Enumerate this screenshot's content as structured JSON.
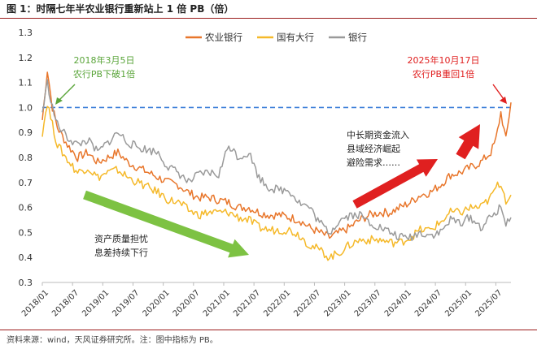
{
  "header": {
    "title": "图 1：时隔七年半农业银行重新站上 1 倍 PB（倍）"
  },
  "footer": {
    "source": "资料来源：wind，天风证券研究所。注：图中指标为 PB。"
  },
  "chart_data": {
    "type": "line",
    "ylim": [
      0.3,
      1.3
    ],
    "y_ticks": [
      "0.3",
      "0.4",
      "0.5",
      "0.6",
      "0.7",
      "0.8",
      "0.9",
      "1.0",
      "1.1",
      "1.2",
      "1.3"
    ],
    "x_ticks": [
      "2018/01",
      "2018/07",
      "2019/01",
      "2019/07",
      "2020/01",
      "2020/07",
      "2021/01",
      "2021/07",
      "2022/01",
      "2022/07",
      "2023/01",
      "2023/07",
      "2024/01",
      "2024/07",
      "2025/01",
      "2025/07"
    ],
    "xlim": [
      "2018/01",
      "2025/10"
    ],
    "legend_position": "top-right",
    "reference_line": {
      "y": 1.0,
      "color": "#3c7fd9",
      "style": "dashed"
    },
    "series": [
      {
        "name": "农业银行",
        "color": "#e8762b",
        "x": [
          "2018/01",
          "2018/02",
          "2018/03",
          "2018/04",
          "2018/06",
          "2018/08",
          "2018/10",
          "2018/12",
          "2019/02",
          "2019/04",
          "2019/06",
          "2019/08",
          "2019/10",
          "2019/12",
          "2020/02",
          "2020/04",
          "2020/06",
          "2020/08",
          "2020/10",
          "2020/12",
          "2021/02",
          "2021/04",
          "2021/06",
          "2021/08",
          "2021/10",
          "2021/12",
          "2022/02",
          "2022/04",
          "2022/06",
          "2022/08",
          "2022/10",
          "2022/12",
          "2023/02",
          "2023/04",
          "2023/06",
          "2023/08",
          "2023/10",
          "2023/12",
          "2024/02",
          "2024/04",
          "2024/06",
          "2024/08",
          "2024/10",
          "2024/12",
          "2025/02",
          "2025/04",
          "2025/06",
          "2025/07",
          "2025/08",
          "2025/09",
          "2025/10"
        ],
        "y": [
          0.95,
          1.15,
          1.0,
          0.92,
          0.85,
          0.8,
          0.82,
          0.78,
          0.8,
          0.82,
          0.78,
          0.76,
          0.74,
          0.72,
          0.7,
          0.69,
          0.66,
          0.64,
          0.64,
          0.63,
          0.62,
          0.6,
          0.6,
          0.58,
          0.57,
          0.57,
          0.56,
          0.55,
          0.52,
          0.5,
          0.48,
          0.5,
          0.52,
          0.55,
          0.57,
          0.58,
          0.58,
          0.6,
          0.62,
          0.65,
          0.66,
          0.69,
          0.73,
          0.74,
          0.76,
          0.78,
          0.82,
          0.87,
          0.98,
          0.87,
          1.02
        ]
      },
      {
        "name": "国有大行",
        "color": "#f5b92a",
        "x": [
          "2018/01",
          "2018/02",
          "2018/03",
          "2018/04",
          "2018/06",
          "2018/08",
          "2018/10",
          "2018/12",
          "2019/02",
          "2019/04",
          "2019/06",
          "2019/08",
          "2019/10",
          "2019/12",
          "2020/02",
          "2020/04",
          "2020/06",
          "2020/08",
          "2020/10",
          "2020/12",
          "2021/02",
          "2021/04",
          "2021/06",
          "2021/08",
          "2021/10",
          "2021/12",
          "2022/02",
          "2022/04",
          "2022/06",
          "2022/08",
          "2022/10",
          "2022/12",
          "2023/02",
          "2023/04",
          "2023/06",
          "2023/08",
          "2023/10",
          "2023/12",
          "2024/02",
          "2024/04",
          "2024/06",
          "2024/08",
          "2024/10",
          "2024/12",
          "2025/02",
          "2025/04",
          "2025/06",
          "2025/07",
          "2025/08",
          "2025/09",
          "2025/10"
        ],
        "y": [
          0.9,
          1.02,
          0.93,
          0.85,
          0.79,
          0.74,
          0.76,
          0.72,
          0.74,
          0.75,
          0.72,
          0.7,
          0.68,
          0.66,
          0.63,
          0.62,
          0.59,
          0.57,
          0.58,
          0.58,
          0.58,
          0.56,
          0.55,
          0.52,
          0.51,
          0.51,
          0.51,
          0.49,
          0.45,
          0.43,
          0.4,
          0.42,
          0.45,
          0.47,
          0.47,
          0.47,
          0.46,
          0.46,
          0.48,
          0.51,
          0.51,
          0.54,
          0.58,
          0.58,
          0.6,
          0.6,
          0.64,
          0.68,
          0.7,
          0.63,
          0.65
        ]
      },
      {
        "name": "银行",
        "color": "#9a9a9a",
        "x": [
          "2018/01",
          "2018/02",
          "2018/03",
          "2018/04",
          "2018/06",
          "2018/08",
          "2018/10",
          "2018/12",
          "2019/02",
          "2019/04",
          "2019/06",
          "2019/08",
          "2019/10",
          "2019/12",
          "2020/02",
          "2020/04",
          "2020/06",
          "2020/08",
          "2020/10",
          "2020/12",
          "2021/02",
          "2021/04",
          "2021/06",
          "2021/08",
          "2021/10",
          "2021/12",
          "2022/02",
          "2022/04",
          "2022/06",
          "2022/08",
          "2022/10",
          "2022/12",
          "2023/02",
          "2023/04",
          "2023/06",
          "2023/08",
          "2023/10",
          "2023/12",
          "2024/02",
          "2024/04",
          "2024/06",
          "2024/08",
          "2024/10",
          "2024/12",
          "2025/02",
          "2025/04",
          "2025/06",
          "2025/07",
          "2025/08",
          "2025/09",
          "2025/10"
        ],
        "y": [
          0.98,
          1.1,
          1.0,
          0.93,
          0.88,
          0.85,
          0.87,
          0.82,
          0.86,
          0.9,
          0.86,
          0.84,
          0.83,
          0.82,
          0.76,
          0.74,
          0.7,
          0.73,
          0.74,
          0.73,
          0.85,
          0.8,
          0.82,
          0.72,
          0.68,
          0.67,
          0.67,
          0.62,
          0.6,
          0.54,
          0.5,
          0.55,
          0.57,
          0.57,
          0.54,
          0.52,
          0.5,
          0.48,
          0.48,
          0.5,
          0.49,
          0.5,
          0.55,
          0.54,
          0.56,
          0.52,
          0.56,
          0.58,
          0.6,
          0.54,
          0.56
        ]
      }
    ],
    "annotations": [
      {
        "text_lines": [
          "2018年3月5日",
          "农行PB下破1倍"
        ],
        "color": "#5aa53a"
      },
      {
        "text_lines": [
          "2025年10月17日",
          "农行PB重回1倍"
        ],
        "color": "#e02020"
      },
      {
        "text_lines": [
          "中长期资金流入",
          "县域经济崛起",
          "避险需求……"
        ],
        "color": "#222222"
      },
      {
        "text_lines": [
          "资产质量担忧",
          "息差持续下行"
        ],
        "color": "#222222"
      }
    ],
    "trend_arrows": [
      {
        "direction": "down",
        "color": "#7dc243"
      },
      {
        "direction": "up",
        "color": "#e02020"
      },
      {
        "direction": "up",
        "color": "#e02020"
      }
    ]
  }
}
